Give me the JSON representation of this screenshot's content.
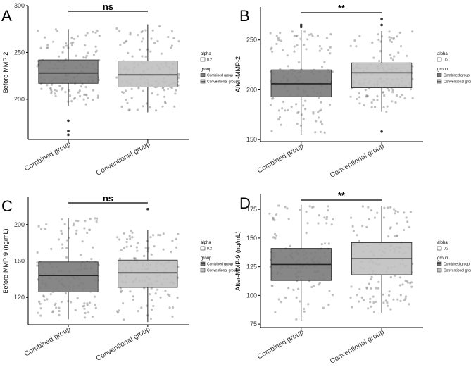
{
  "legend": {
    "alpha_title": "alpha",
    "alpha_value": "0.2",
    "group_title": "group",
    "groups": [
      "Combined group",
      "Conventional group"
    ]
  },
  "colors": {
    "combined_fill": "#7a7a7a",
    "conventional_fill": "#c0c0c0",
    "point": "#8c8c8c",
    "outlier": "#333333",
    "axis": "#000000"
  },
  "chart_data": [
    {
      "panel": "A",
      "type": "box",
      "ylabel": "Before-MMP-2",
      "categories": [
        "Combined group",
        "Conventional group"
      ],
      "ylim": [
        157,
        300
      ],
      "yticks": [
        200,
        250,
        300
      ],
      "significance": "ns",
      "series": [
        {
          "name": "Combined group",
          "min": 193,
          "q1": 217,
          "median": 228,
          "q3": 242,
          "max": 275,
          "outliers": [
            177,
            166,
            162
          ]
        },
        {
          "name": "Conventional group",
          "min": 186,
          "q1": 213,
          "median": 226,
          "q3": 241,
          "max": 280,
          "outliers": []
        }
      ]
    },
    {
      "panel": "B",
      "type": "box",
      "ylabel": "After-MMP-2",
      "categories": [
        "Combined group",
        "Conventional group"
      ],
      "ylim": [
        148,
        283
      ],
      "yticks": [
        150,
        200,
        250
      ],
      "significance": "**",
      "series": [
        {
          "name": "Combined group",
          "min": 155,
          "q1": 193,
          "median": 206,
          "q3": 220,
          "max": 260,
          "outliers": [
            265,
            263
          ]
        },
        {
          "name": "Conventional group",
          "min": 178,
          "q1": 202,
          "median": 217,
          "q3": 227,
          "max": 259,
          "outliers": [
            271,
            265,
            158
          ]
        }
      ]
    },
    {
      "panel": "C",
      "type": "box",
      "ylabel": "Before-MMP-9 (ng/mL)",
      "categories": [
        "Combined group",
        "Conventional group"
      ],
      "ylim": [
        90,
        230
      ],
      "yticks": [
        120,
        160,
        200
      ],
      "significance": "ns",
      "series": [
        {
          "name": "Combined group",
          "min": 96,
          "q1": 126,
          "median": 144,
          "q3": 159,
          "max": 207,
          "outliers": []
        },
        {
          "name": "Conventional group",
          "min": 93,
          "q1": 131,
          "median": 147,
          "q3": 161,
          "max": 194,
          "outliers": [
            217
          ]
        }
      ]
    },
    {
      "panel": "D",
      "type": "box",
      "ylabel": "After-MMP-9 (ng/mL)",
      "categories": [
        "Combined group",
        "Conventional group"
      ],
      "ylim": [
        72,
        188
      ],
      "yticks": [
        75,
        100,
        125,
        150,
        175
      ],
      "significance": "**",
      "series": [
        {
          "name": "Combined group",
          "min": 78,
          "q1": 113,
          "median": 127,
          "q3": 141,
          "max": 179,
          "outliers": []
        },
        {
          "name": "Conventional group",
          "min": 85,
          "q1": 118,
          "median": 132,
          "q3": 146,
          "max": 178,
          "outliers": []
        }
      ]
    }
  ]
}
